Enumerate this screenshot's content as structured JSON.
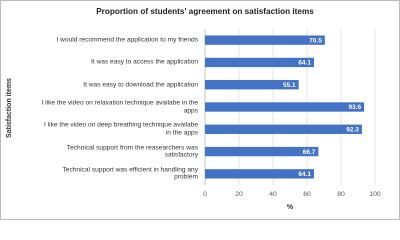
{
  "chart_data": {
    "type": "bar",
    "orientation": "horizontal",
    "title": "Proportion of students' agreement on satisfaction items",
    "x_label": "%",
    "y_label": "Satisfaction items",
    "categories": [
      "I would recommend the application to my friends",
      "It was easy to access the application",
      "It was easy to download the application",
      "I like the video on relaxation technique availabe in the apps",
      "I like the video on deep breathing technique availabe in the apps",
      "Technical support from the reasearchers was satisfactory",
      "Technical support was efficient in handling any problem"
    ],
    "values": [
      70.5,
      64.1,
      55.1,
      93.6,
      92.3,
      66.7,
      64.1
    ],
    "color": "#4472c4",
    "xlim": [
      0,
      100
    ],
    "xticks": [
      0,
      20,
      40,
      60,
      80,
      100
    ],
    "grid": true
  }
}
